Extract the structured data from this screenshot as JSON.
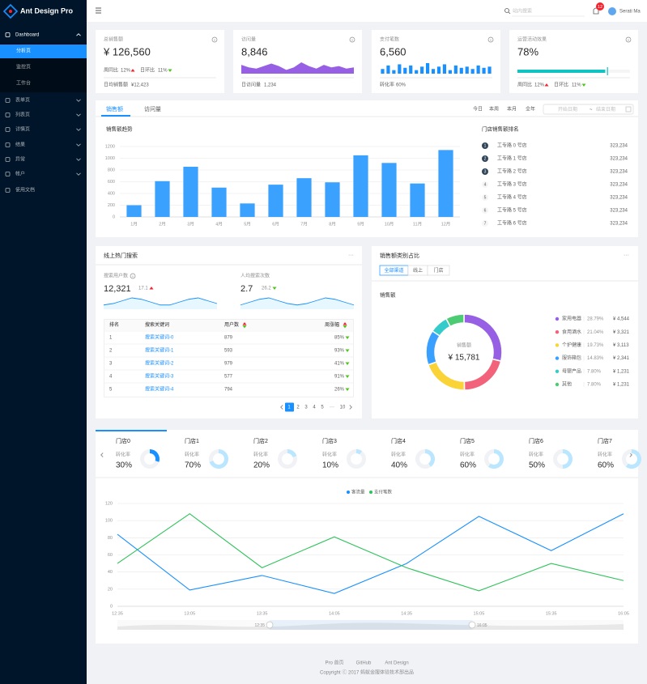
{
  "sidebar": {
    "logo": "Ant Design Pro",
    "menu": [
      "Dashboard",
      "表单页",
      "列表页",
      "详情页",
      "结果",
      "异常",
      "帐户",
      "使用文档"
    ],
    "submenu": [
      "分析页",
      "监控页",
      "工作台"
    ]
  },
  "header": {
    "search_placeholder": "站内搜索",
    "notice_count": 12,
    "user": "Serati Ma"
  },
  "cards": [
    {
      "title": "总销售额",
      "value": "¥ 126,560",
      "week_label": "周同比",
      "week": "12%",
      "day_label": "日环比",
      "day": "11%",
      "footer_label": "日均销售额",
      "footer_value": "¥12,423"
    },
    {
      "title": "访问量",
      "value": "8,846",
      "trend": [
        7,
        5,
        4,
        6,
        8,
        6,
        3,
        5,
        9,
        6,
        4,
        7,
        5,
        6,
        4,
        5
      ],
      "footer_label": "日访问量",
      "footer_value": "1,234"
    },
    {
      "title": "支付笔数",
      "value": "6,560",
      "trend": [
        4,
        7,
        3,
        8,
        5,
        7,
        3,
        6,
        9,
        4,
        6,
        8,
        3,
        7,
        5,
        6,
        4,
        7,
        5,
        6
      ],
      "footer_label": "转化率",
      "footer_value": "60%"
    },
    {
      "title": "运营活动效果",
      "value": {
        "value": 78,
        "label": "78%"
      },
      "target": 80,
      "week_label": "周同比",
      "week": "12%",
      "day_label": "日环比",
      "day": "11%"
    }
  ],
  "sales": {
    "tabs": [
      "销售额",
      "访问量"
    ],
    "ranges": [
      "今日",
      "本周",
      "本月",
      "全年"
    ],
    "start_placeholder": "开始日期",
    "separator": "~",
    "end_placeholder": "结束日期",
    "ranking_title": "门店销售额排名",
    "ranking": [
      {
        "rank": 1,
        "name": "工专路 0 号店",
        "value": "323,234"
      },
      {
        "rank": 2,
        "name": "工专路 1 号店",
        "value": "323,234"
      },
      {
        "rank": 3,
        "name": "工专路 2 号店",
        "value": "323,234"
      },
      {
        "rank": 4,
        "name": "工专路 3 号店",
        "value": "323,234"
      },
      {
        "rank": 5,
        "name": "工专路 4 号店",
        "value": "323,234"
      },
      {
        "rank": 6,
        "name": "工专路 5 号店",
        "value": "323,234"
      },
      {
        "rank": 7,
        "name": "工专路 6 号店",
        "value": "323,234"
      }
    ]
  },
  "chart_data": [
    {
      "type": "bar",
      "title": "销售额趋势",
      "categories": [
        "1月",
        "2月",
        "3月",
        "4月",
        "5月",
        "6月",
        "7月",
        "8月",
        "9月",
        "10月",
        "11月",
        "12月"
      ],
      "values": [
        200,
        610,
        855,
        500,
        230,
        550,
        660,
        590,
        1050,
        920,
        570,
        1140
      ],
      "color": "#3aa1ff",
      "ylim": [
        0,
        1200
      ],
      "yticks": [
        0,
        200,
        400,
        600,
        800,
        1000,
        1200
      ],
      "grid": true
    },
    {
      "type": "line",
      "categories": [
        "12:35",
        "13:05",
        "13:35",
        "14:05",
        "14:35",
        "15:05",
        "15:35",
        "16:05"
      ],
      "series": [
        {
          "name": "客流量",
          "color": "#1890ff",
          "values": [
            84,
            19,
            36,
            15,
            50,
            105,
            65,
            108
          ]
        },
        {
          "name": "支付笔数",
          "color": "#2fc25b",
          "values": [
            50,
            108,
            45,
            81,
            45,
            18,
            50,
            30
          ]
        }
      ],
      "ylim": [
        0,
        120
      ],
      "yticks": [
        0,
        20,
        40,
        60,
        80,
        100,
        120
      ],
      "grid": true,
      "legend": "top"
    }
  ],
  "search": {
    "title": "线上热门搜索",
    "more": "···",
    "stats": [
      {
        "label": "搜索用户数",
        "value": "12,321",
        "change": "17.1",
        "trend": [
          3,
          4,
          6,
          8,
          7,
          5,
          3,
          3,
          5,
          7,
          8,
          6,
          4
        ]
      },
      {
        "label": "人均搜索次数",
        "value": "2.7",
        "change": "26.2",
        "trend": [
          3,
          5,
          7,
          8,
          6,
          4,
          3,
          4,
          6,
          8,
          7,
          5,
          3
        ]
      }
    ],
    "columns": [
      "排名",
      "搜索关键词",
      "用户数",
      "周涨幅"
    ],
    "rows": [
      [
        1,
        "搜索关键词-0",
        879,
        "85%"
      ],
      [
        2,
        "搜索关键词-1",
        593,
        "93%"
      ],
      [
        3,
        "搜索关键词-2",
        979,
        "41%"
      ],
      [
        4,
        "搜索关键词-3",
        577,
        "91%"
      ],
      [
        5,
        "搜索关键词-4",
        794,
        "26%"
      ]
    ],
    "pages": [
      1,
      2,
      3,
      4,
      5,
      "···",
      10
    ]
  },
  "category": {
    "title": "销售额类别占比",
    "more": "···",
    "channels": [
      "全部渠道",
      "线上",
      "门店"
    ],
    "subtitle": "销售额",
    "center_label": "销售额",
    "center_value": "¥ 15,781",
    "items": [
      {
        "name": "家用电器",
        "color": "#975fe4",
        "share": {
          "value": 28.79,
          "label": "28.79%"
        },
        "amount": "¥ 4,544"
      },
      {
        "name": "食用酒水",
        "color": "#f2637b",
        "share": {
          "value": 21.04,
          "label": "21.04%"
        },
        "amount": "¥ 3,321"
      },
      {
        "name": "个护健康",
        "color": "#fad337",
        "share": {
          "value": 19.73,
          "label": "19.73%"
        },
        "amount": "¥ 3,113"
      },
      {
        "name": "服饰箱包",
        "color": "#3aa0ff",
        "share": {
          "value": 14.83,
          "label": "14.83%"
        },
        "amount": "¥ 2,341"
      },
      {
        "name": "母婴产品",
        "color": "#36cbcb",
        "share": {
          "value": 7.8,
          "label": "7.80%"
        },
        "amount": "¥ 1,231"
      },
      {
        "name": "其他",
        "color": "#4dcb73",
        "share": {
          "value": 7.8,
          "label": "7.80%"
        },
        "amount": "¥ 1,231"
      }
    ]
  },
  "stores": {
    "tabs": [
      {
        "name": "门店0",
        "label": "转化率",
        "rate": {
          "value": 30,
          "label": "30%"
        }
      },
      {
        "name": "门店1",
        "label": "转化率",
        "rate": {
          "value": 70,
          "label": "70%"
        }
      },
      {
        "name": "门店2",
        "label": "转化率",
        "rate": {
          "value": 20,
          "label": "20%"
        }
      },
      {
        "name": "门店3",
        "label": "转化率",
        "rate": {
          "value": 10,
          "label": "10%"
        }
      },
      {
        "name": "门店4",
        "label": "转化率",
        "rate": {
          "value": 40,
          "label": "40%"
        }
      },
      {
        "name": "门店5",
        "label": "转化率",
        "rate": {
          "value": 60,
          "label": "60%"
        }
      },
      {
        "name": "门店6",
        "label": "转化率",
        "rate": {
          "value": 50,
          "label": "50%"
        }
      },
      {
        "name": "门店7",
        "label": "转化率",
        "rate": {
          "value": 60,
          "label": "60%"
        }
      }
    ],
    "slider": {
      "start": "12:35",
      "end": "16:05"
    }
  },
  "footer": {
    "links": [
      "Pro 首页",
      "GitHub",
      "Ant Design"
    ],
    "copyright": "Copyright ⓒ 2017 蚂蚁金服体验技术部出品"
  }
}
